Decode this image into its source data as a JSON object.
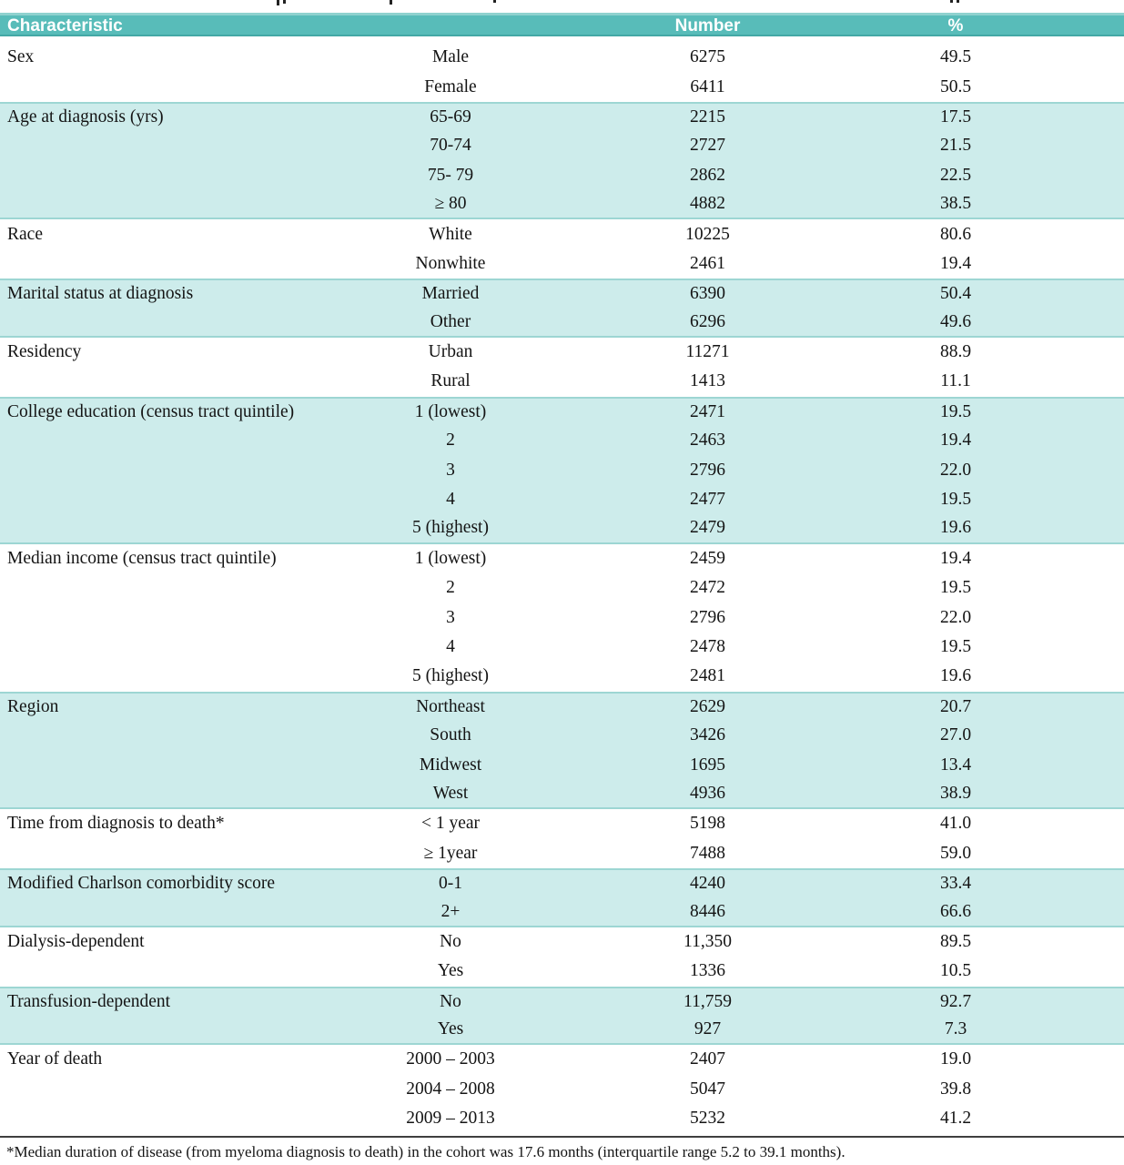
{
  "table": {
    "columns": [
      "Characteristic",
      "Number",
      "%"
    ],
    "groups": [
      {
        "name": "Sex",
        "rows": [
          [
            "Male",
            "6275",
            "49.5"
          ],
          [
            "Female",
            "6411",
            "50.5"
          ]
        ]
      },
      {
        "name": "Age at diagnosis (yrs)",
        "rows": [
          [
            "65-69",
            "2215",
            "17.5"
          ],
          [
            "70-74",
            "2727",
            "21.5"
          ],
          [
            "75- 79",
            "2862",
            "22.5"
          ],
          [
            "≥ 80",
            "4882",
            "38.5"
          ]
        ]
      },
      {
        "name": "Race",
        "rows": [
          [
            "White",
            "10225",
            "80.6"
          ],
          [
            "Nonwhite",
            "2461",
            "19.4"
          ]
        ]
      },
      {
        "name": "Marital status at diagnosis",
        "rows": [
          [
            "Married",
            "6390",
            "50.4"
          ],
          [
            "Other",
            "6296",
            "49.6"
          ]
        ]
      },
      {
        "name": "Residency",
        "rows": [
          [
            "Urban",
            "11271",
            "88.9"
          ],
          [
            "Rural",
            "1413",
            "11.1"
          ]
        ]
      },
      {
        "name": "College education (census tract quintile)",
        "rows": [
          [
            "1 (lowest)",
            "2471",
            "19.5"
          ],
          [
            "2",
            "2463",
            "19.4"
          ],
          [
            "3",
            "2796",
            "22.0"
          ],
          [
            "4",
            "2477",
            "19.5"
          ],
          [
            "5 (highest)",
            "2479",
            "19.6"
          ]
        ]
      },
      {
        "name": "Median income (census tract quintile)",
        "rows": [
          [
            "1 (lowest)",
            "2459",
            "19.4"
          ],
          [
            "2",
            "2472",
            "19.5"
          ],
          [
            "3",
            "2796",
            "22.0"
          ],
          [
            "4",
            "2478",
            "19.5"
          ],
          [
            "5 (highest)",
            "2481",
            "19.6"
          ]
        ]
      },
      {
        "name": "Region",
        "rows": [
          [
            "Northeast",
            "2629",
            "20.7"
          ],
          [
            "South",
            "3426",
            "27.0"
          ],
          [
            "Midwest",
            "1695",
            "13.4"
          ],
          [
            "West",
            "4936",
            "38.9"
          ]
        ]
      },
      {
        "name": "Time from diagnosis to death*",
        "rows": [
          [
            "< 1 year",
            "5198",
            "41.0"
          ],
          [
            "≥ 1year",
            "7488",
            "59.0"
          ]
        ]
      },
      {
        "name": "Modified Charlson comorbidity score",
        "rows": [
          [
            "0-1",
            "4240",
            "33.4"
          ],
          [
            "2+",
            "8446",
            "66.6"
          ]
        ]
      },
      {
        "name": "Dialysis-dependent",
        "rows": [
          [
            "No",
            "11,350",
            "89.5"
          ],
          [
            "Yes",
            "1336",
            "10.5"
          ]
        ]
      },
      {
        "name": "Transfusion-dependent",
        "rows": [
          [
            "No",
            "11,759",
            "92.7"
          ],
          [
            "Yes",
            "927",
            "7.3"
          ]
        ]
      },
      {
        "name": "Year of death",
        "rows": [
          [
            "2000 – 2003",
            "2407",
            "19.0"
          ],
          [
            "2004 – 2008",
            "5047",
            "39.8"
          ],
          [
            "2009 – 2013",
            "5232",
            "41.2"
          ]
        ]
      }
    ],
    "footnote": "*Median duration of disease (from myeloma diagnosis to death) in the cohort was 17.6 months (interquartile range 5.2 to 39.1 months).",
    "colors": {
      "header_bg": "#58bcb9",
      "header_text": "#ffffff",
      "band_bg": "#cdeceb",
      "band_border": "#9dd6d3"
    }
  }
}
